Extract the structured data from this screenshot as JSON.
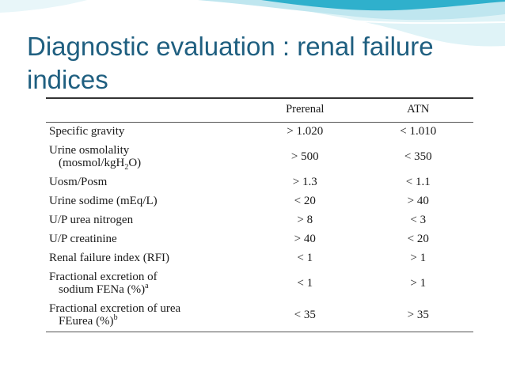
{
  "slide": {
    "title": "Diagnostic evaluation : renal failure indices",
    "colors": {
      "title": "#1f5f80",
      "wave_dark": "#2fb0cc",
      "wave_light": "#bfe6ef"
    }
  },
  "table": {
    "columns": [
      "",
      "Prerenal",
      "ATN"
    ],
    "rows": [
      {
        "param": "Specific gravity",
        "prerenal": "> 1.020",
        "atn": "< 1.010"
      },
      {
        "param_line1": "Urine osmolality",
        "param_line2a": "(mosmol/kgH",
        "param_sub": "2",
        "param_line2b": "O)",
        "prerenal": "> 500",
        "atn": "< 350"
      },
      {
        "param": "Uosm/Posm",
        "prerenal": "> 1.3",
        "atn": "< 1.1"
      },
      {
        "param": "Urine sodime (mEq/L)",
        "prerenal": "< 20",
        "atn": "> 40"
      },
      {
        "param": "U/P urea nitrogen",
        "prerenal": "> 8",
        "atn": "< 3"
      },
      {
        "param": "U/P creatinine",
        "prerenal": "> 40",
        "atn": "< 20"
      },
      {
        "param": "Renal failure index (RFI)",
        "prerenal": "< 1",
        "atn": "> 1"
      },
      {
        "param_line1": "Fractional excretion of",
        "param_line2": "sodium FENa (%)",
        "param_sup": "a",
        "prerenal": "< 1",
        "atn": "> 1"
      },
      {
        "param_line1": "Fractional excretion of urea",
        "param_line2": "FEurea (%)",
        "param_sup": "b",
        "prerenal": "< 35",
        "atn": "> 35"
      }
    ]
  }
}
